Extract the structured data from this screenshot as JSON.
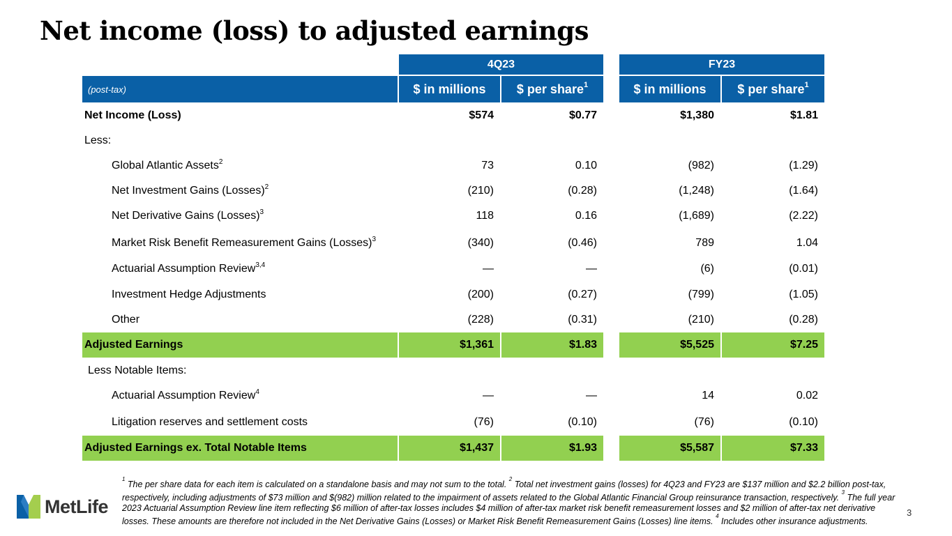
{
  "title": "Net income (loss) to adjusted earnings",
  "group_headers": {
    "q": "4Q23",
    "fy": "FY23"
  },
  "col_headers": {
    "label": "(post-tax)",
    "millions": "$ in millions",
    "per_share": "$ per share",
    "per_share_sup": "1"
  },
  "rows": [
    {
      "label": "Net Income (Loss)",
      "sup": "",
      "c1": "$574",
      "c2": "$0.77",
      "c3": "$1,380",
      "c4": "$1.81"
    },
    {
      "label": "Less:",
      "sup": "",
      "c1": "",
      "c2": "",
      "c3": "",
      "c4": ""
    },
    {
      "label": "Global Atlantic Assets",
      "sup": "2",
      "c1": "73",
      "c2": "0.10",
      "c3": "(982)",
      "c4": "(1.29)"
    },
    {
      "label": "Net Investment Gains (Losses)",
      "sup": "2",
      "c1": "(210)",
      "c2": "(0.28)",
      "c3": "(1,248)",
      "c4": "(1.64)"
    },
    {
      "label": "Net Derivative Gains (Losses)",
      "sup": "3",
      "c1": "118",
      "c2": "0.16",
      "c3": "(1,689)",
      "c4": "(2.22)"
    },
    {
      "label": "Market Risk Benefit Remeasurement Gains (Losses)",
      "sup": "3",
      "c1": "(340)",
      "c2": "(0.46)",
      "c3": "789",
      "c4": "1.04"
    },
    {
      "label": "Actuarial Assumption Review",
      "sup": "3,4",
      "c1": "—",
      "c2": "—",
      "c3": "(6)",
      "c4": "(0.01)"
    },
    {
      "label": "Investment Hedge Adjustments",
      "sup": "",
      "c1": "(200)",
      "c2": "(0.27)",
      "c3": "(799)",
      "c4": "(1.05)"
    },
    {
      "label": "Other",
      "sup": "",
      "c1": "(228)",
      "c2": "(0.31)",
      "c3": "(210)",
      "c4": "(0.28)"
    },
    {
      "label": "Adjusted Earnings",
      "sup": "",
      "c1": "$1,361",
      "c2": "$1.83",
      "c3": "$5,525",
      "c4": "$7.25"
    },
    {
      "label": "Less Notable Items:",
      "sup": "",
      "c1": "",
      "c2": "",
      "c3": "",
      "c4": ""
    },
    {
      "label": "Actuarial Assumption Review",
      "sup": "4",
      "c1": "—",
      "c2": "—",
      "c3": "14",
      "c4": "0.02"
    },
    {
      "label": "Litigation reserves and settlement costs",
      "sup": "",
      "c1": "(76)",
      "c2": "(0.10)",
      "c3": "(76)",
      "c4": "(0.10)"
    },
    {
      "label": "Adjusted Earnings ex. Total Notable Items",
      "sup": "",
      "c1": "$1,437",
      "c2": "$1.93",
      "c3": "$5,587",
      "c4": "$7.33"
    }
  ],
  "footnote": {
    "n1": "1",
    "t1": " The per share data for each item is calculated on a standalone basis and may not sum to the total. ",
    "n2": "2",
    "t2": " Total net investment gains (losses) for 4Q23 and FY23 are $137 million and $2.2 billion post-tax, respectively, including adjustments of $73 million and $(982) million related to the impairment of assets related to the Global Atlantic Financial Group reinsurance transaction, respectively. ",
    "n3": "3",
    "t3": " The full year 2023 Actuarial Assumption Review line item reflecting $6 million of after-tax losses includes $4 million of after-tax market risk benefit remeasurement losses and $2 million of after-tax net derivative losses. These amounts are therefore not included in the Net Derivative Gains (Losses) or Market Risk Benefit Remeasurement Gains (Losses) line items. ",
    "n4": "4",
    "t4": " Includes other insurance adjustments."
  },
  "logo_text": "MetLife",
  "page_number": "3",
  "colors": {
    "header_blue": "#0a60a6",
    "highlight_green": "#92d050",
    "logo_blue": "#0a60a6",
    "logo_green": "#a4ce4e"
  }
}
